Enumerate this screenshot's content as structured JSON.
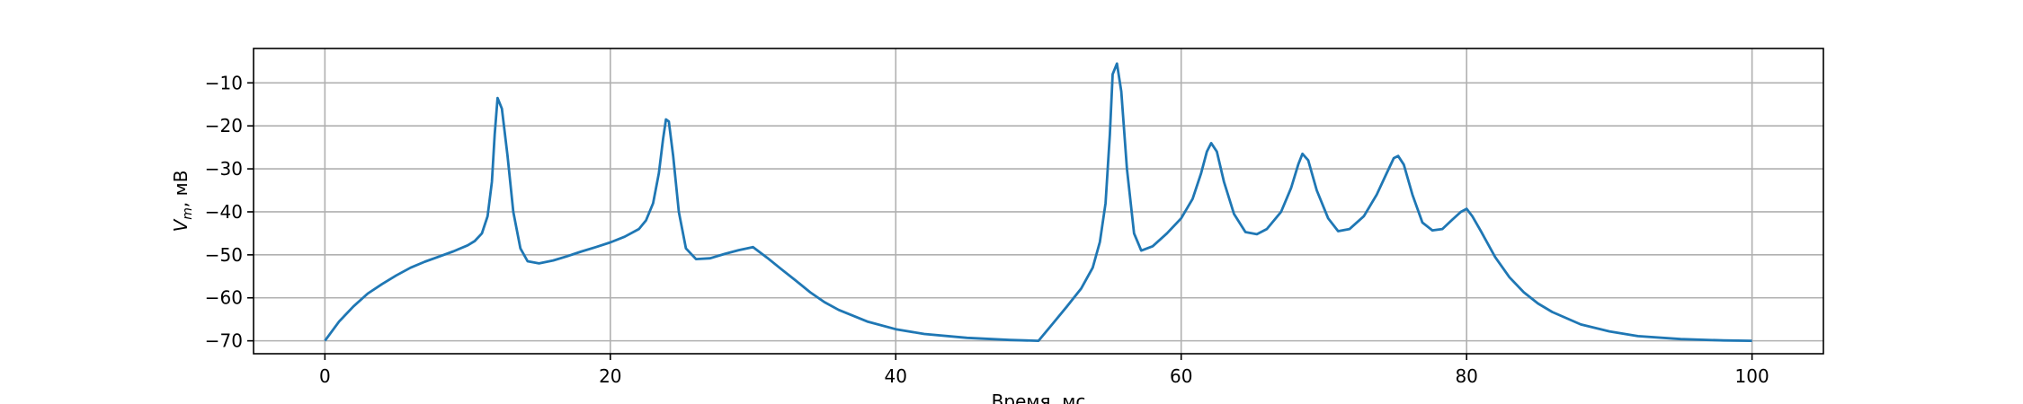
{
  "chart_data": {
    "type": "line",
    "title": "",
    "xlabel": "Время, мс",
    "ylabel_main": "V",
    "ylabel_sub": "m",
    "ylabel_suffix": ", мВ",
    "xlim": [
      -5,
      105
    ],
    "ylim": [
      -73,
      -2
    ],
    "xticks": [
      0,
      20,
      40,
      60,
      80,
      100
    ],
    "xtick_labels": [
      "0",
      "20",
      "40",
      "60",
      "80",
      "100"
    ],
    "yticks": [
      -70,
      -60,
      -50,
      -40,
      -30,
      -20,
      -10
    ],
    "ytick_labels": [
      "−70",
      "−60",
      "−50",
      "−40",
      "−30",
      "−20",
      "−10"
    ],
    "grid": true,
    "series": [
      {
        "color": "#1f77b4",
        "x": [
          0,
          1,
          2,
          3,
          4,
          5,
          6,
          7,
          8,
          9,
          10,
          10.5,
          11,
          11.4,
          11.7,
          11.9,
          12.1,
          12.4,
          12.8,
          13.2,
          13.7,
          14.2,
          15,
          16,
          17,
          18,
          19,
          20,
          21,
          22,
          22.5,
          23,
          23.4,
          23.7,
          23.9,
          24.1,
          24.4,
          24.8,
          25.3,
          26,
          27,
          28,
          29,
          30,
          31,
          32,
          33,
          34,
          35,
          36,
          38,
          40,
          42,
          45,
          48,
          50,
          51,
          52,
          53,
          53.8,
          54.3,
          54.7,
          55,
          55.2,
          55.5,
          55.8,
          56.2,
          56.7,
          57.2,
          58,
          59,
          60,
          60.8,
          61.4,
          61.8,
          62.1,
          62.5,
          63,
          63.7,
          64.5,
          65.3,
          66,
          67,
          67.7,
          68.2,
          68.5,
          68.9,
          69.5,
          70.3,
          71,
          71.8,
          72.8,
          73.7,
          74.4,
          74.9,
          75.2,
          75.6,
          76.2,
          76.9,
          77.6,
          78.3,
          79,
          79.6,
          80,
          80.4,
          81,
          82,
          83,
          84,
          85,
          86,
          88,
          90,
          92,
          95,
          98,
          100
        ],
        "y": [
          -70,
          -65.5,
          -62,
          -59,
          -56.8,
          -54.8,
          -53,
          -51.6,
          -50.4,
          -49.2,
          -47.8,
          -46.8,
          -45,
          -41,
          -33,
          -22,
          -13.5,
          -16,
          -27,
          -40,
          -48.5,
          -51.5,
          -52,
          -51.3,
          -50.3,
          -49.2,
          -48.2,
          -47.1,
          -45.8,
          -44,
          -42,
          -38,
          -31,
          -23,
          -18.5,
          -19,
          -27,
          -40,
          -48.5,
          -51,
          -50.8,
          -49.8,
          -48.9,
          -48.2,
          -50.7,
          -53.4,
          -56,
          -58.7,
          -61,
          -62.8,
          -65.5,
          -67.3,
          -68.4,
          -69.3,
          -69.8,
          -70,
          -66,
          -62,
          -57.8,
          -53,
          -47,
          -38,
          -22,
          -8,
          -5.5,
          -12,
          -30,
          -45,
          -49,
          -48,
          -45,
          -41.5,
          -37,
          -31,
          -26,
          -24,
          -26,
          -33,
          -40.5,
          -44.7,
          -45.2,
          -44,
          -40,
          -34.5,
          -29,
          -26.5,
          -28,
          -35,
          -41.5,
          -44.5,
          -44,
          -41,
          -36,
          -31,
          -27.5,
          -27,
          -29,
          -36,
          -42.5,
          -44.3,
          -44,
          -41.8,
          -40,
          -39.3,
          -41,
          -44.5,
          -50.5,
          -55.2,
          -58.7,
          -61.3,
          -63.3,
          -66.2,
          -67.8,
          -68.9,
          -69.6,
          -69.9,
          -70
        ]
      }
    ]
  }
}
